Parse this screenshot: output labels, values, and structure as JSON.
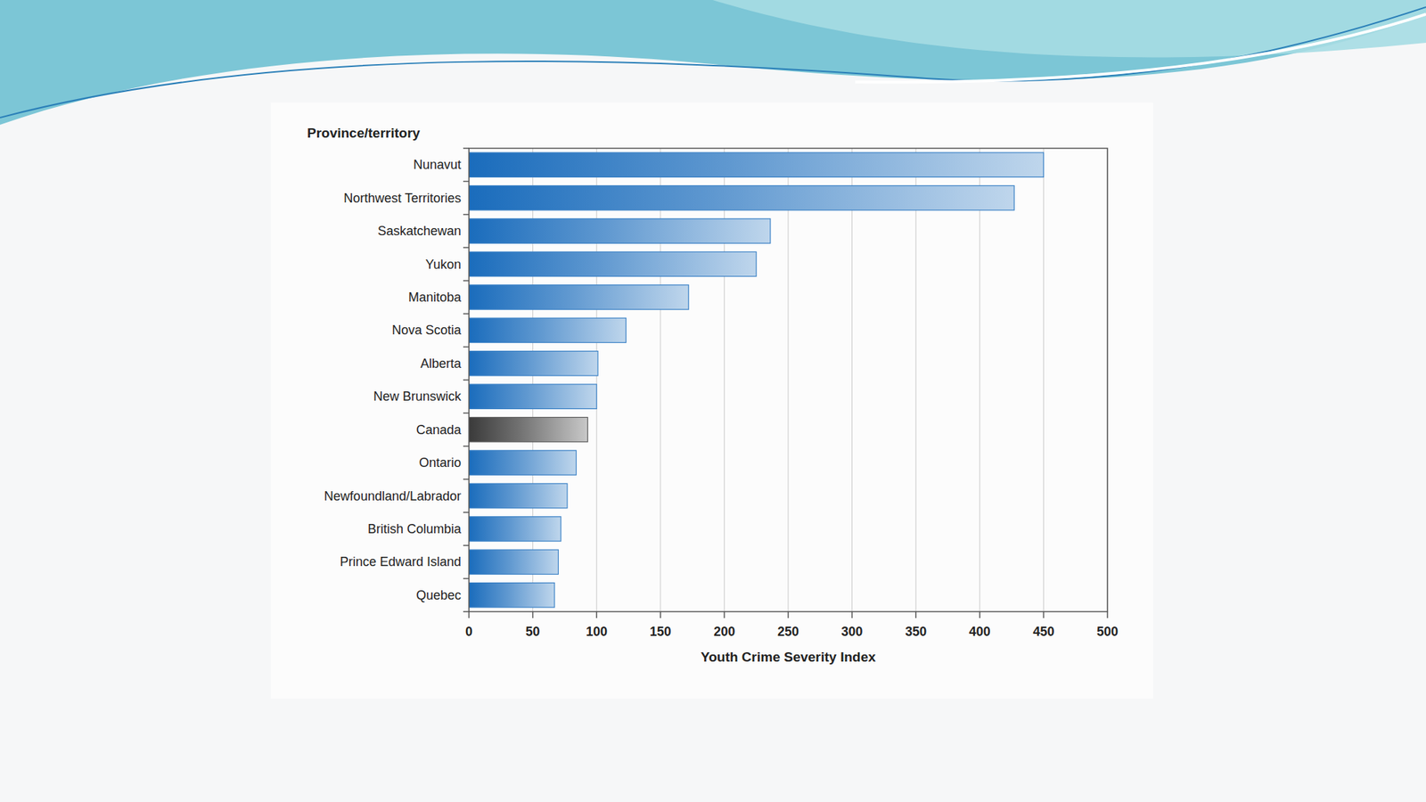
{
  "chart_data": {
    "type": "bar",
    "orientation": "horizontal",
    "ylabel": "Province/territory",
    "xlabel": "Youth Crime Severity Index",
    "categories": [
      "Nunavut",
      "Northwest Territories",
      "Saskatchewan",
      "Yukon",
      "Manitoba",
      "Nova Scotia",
      "Alberta",
      "New Brunswick",
      "Canada",
      "Ontario",
      "Newfoundland/Labrador",
      "British Columbia",
      "Prince Edward Island",
      "Quebec"
    ],
    "values": [
      450,
      427,
      236,
      225,
      172,
      123,
      101,
      100,
      93,
      84,
      77,
      72,
      70,
      67
    ],
    "colors": [
      "#1a6cbc",
      "#1a6cbc",
      "#1a6cbc",
      "#1a6cbc",
      "#1a6cbc",
      "#1a6cbc",
      "#1a6cbc",
      "#1a6cbc",
      "#3a3a3a",
      "#1a6cbc",
      "#1a6cbc",
      "#1a6cbc",
      "#1a6cbc",
      "#1a6cbc"
    ],
    "xlim": [
      0,
      500
    ],
    "xticks": [
      0,
      50,
      100,
      150,
      200,
      250,
      300,
      350,
      400,
      450,
      500
    ],
    "grid": true
  }
}
